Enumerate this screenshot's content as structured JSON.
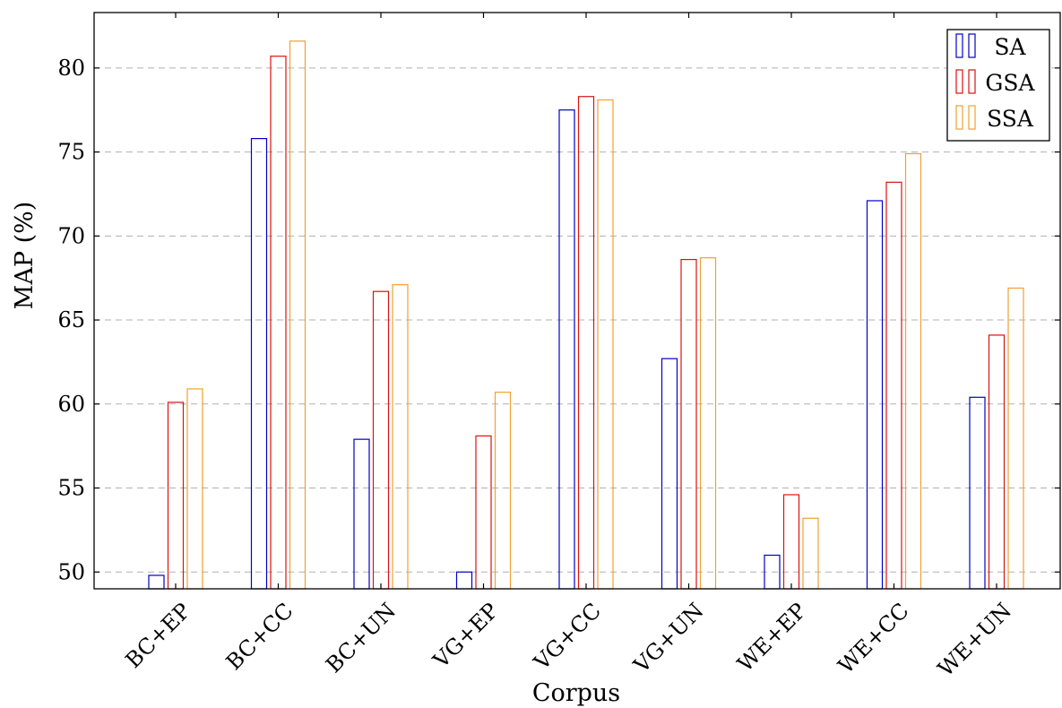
{
  "chart_data": {
    "type": "bar",
    "xlabel": "Corpus",
    "ylabel": "MAP (%)",
    "categories": [
      "BC+EP",
      "BC+CC",
      "BC+UN",
      "VG+EP",
      "VG+CC",
      "VG+UN",
      "WE+EP",
      "WE+CC",
      "WE+UN"
    ],
    "series": [
      {
        "name": "SA",
        "color": "#0000cc",
        "values": [
          49.8,
          75.8,
          57.9,
          50.0,
          77.5,
          62.7,
          51.0,
          72.1,
          60.4
        ]
      },
      {
        "name": "GSA",
        "color": "#dd1111",
        "values": [
          60.1,
          80.7,
          66.7,
          58.1,
          78.3,
          68.6,
          54.6,
          73.2,
          64.1
        ]
      },
      {
        "name": "SSA",
        "color": "#f0a030",
        "values": [
          60.9,
          81.6,
          67.1,
          60.7,
          78.1,
          68.7,
          53.2,
          74.9,
          66.9
        ]
      }
    ],
    "ylim": [
      49,
      83.3
    ],
    "yticks": [
      50,
      55,
      60,
      65,
      70,
      75,
      80
    ],
    "grid": "horizontal dashed",
    "legend_position": "top-right"
  }
}
